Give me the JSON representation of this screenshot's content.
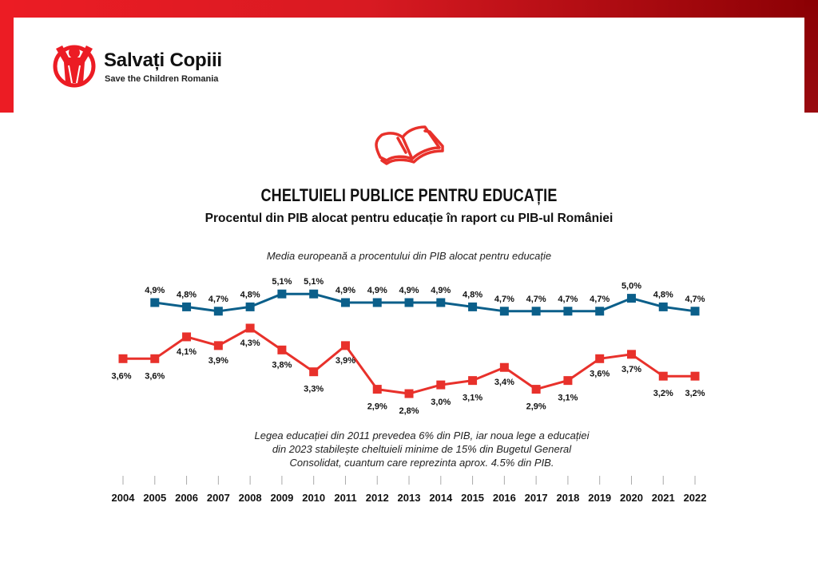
{
  "brand": {
    "name": "Salvați Copiii",
    "tagline": "Save the Children Romania",
    "logo_icon": "child-figure-icon",
    "primary_color": "#ec1c24",
    "dark_red": "#8b0004"
  },
  "header": {
    "book_icon": "open-book-icon",
    "title": "CHELTUIELI PUBLICE PENTRU EDUCAȚIE",
    "subtitle": "Procentul din PIB alocat pentru educație în raport cu PIB-ul României"
  },
  "notes": {
    "eu_series_label": "Media europeană a procentului din PIB alocat pentru educație",
    "law_note": "Legea educației din 2011 prevedea 6% din PIB, iar noua lege a educației din 2023 stabilește cheltuieli minime de 15% din Bugetul General Consolidat, cuantum care reprezinta aprox. 4.5% din PIB."
  },
  "chart_data": {
    "type": "line",
    "title": "CHELTUIELI PUBLICE PENTRU EDUCAȚIE",
    "subtitle": "Procentul din PIB alocat pentru educație în raport cu PIB-ul României",
    "xlabel": "",
    "ylabel": "",
    "grid": false,
    "ylim": [
      2.5,
      5.5
    ],
    "x": [
      "2004",
      "2005",
      "2006",
      "2007",
      "2008",
      "2009",
      "2010",
      "2011",
      "2012",
      "2013",
      "2014",
      "2015",
      "2016",
      "2017",
      "2018",
      "2019",
      "2020",
      "2021",
      "2022"
    ],
    "series": [
      {
        "name": "Media europeană a procentului din PIB alocat pentru educație",
        "color": "#0b5f8a",
        "values": [
          null,
          4.9,
          4.8,
          4.7,
          4.8,
          5.1,
          5.1,
          4.9,
          4.9,
          4.9,
          4.9,
          4.8,
          4.7,
          4.7,
          4.7,
          4.7,
          5.0,
          4.8,
          4.7
        ],
        "labels": [
          "",
          "4,9%",
          "4,8%",
          "4,7%",
          "4,8%",
          "5,1%",
          "5,1%",
          "4,9%",
          "4,9%",
          "4,9%",
          "4,9%",
          "4,8%",
          "4,7%",
          "4,7%",
          "4,7%",
          "4,7%",
          "5,0%",
          "4,8%",
          "4,7%"
        ]
      },
      {
        "name": "România",
        "color": "#e8312b",
        "values": [
          3.6,
          3.6,
          4.1,
          3.9,
          4.3,
          3.8,
          3.3,
          3.9,
          2.9,
          2.8,
          3.0,
          3.1,
          3.4,
          2.9,
          3.1,
          3.6,
          3.7,
          3.2,
          3.2
        ],
        "labels": [
          "3,6%",
          "3,6%",
          "4,1%",
          "3,9%",
          "4,3%",
          "3,8%",
          "3,3%",
          "3,9%",
          "2,9%",
          "2,8%",
          "3,0%",
          "3,1%",
          "3,4%",
          "2,9%",
          "3,1%",
          "3,6%",
          "3,7%",
          "3,2%",
          "3,2%"
        ]
      }
    ]
  }
}
